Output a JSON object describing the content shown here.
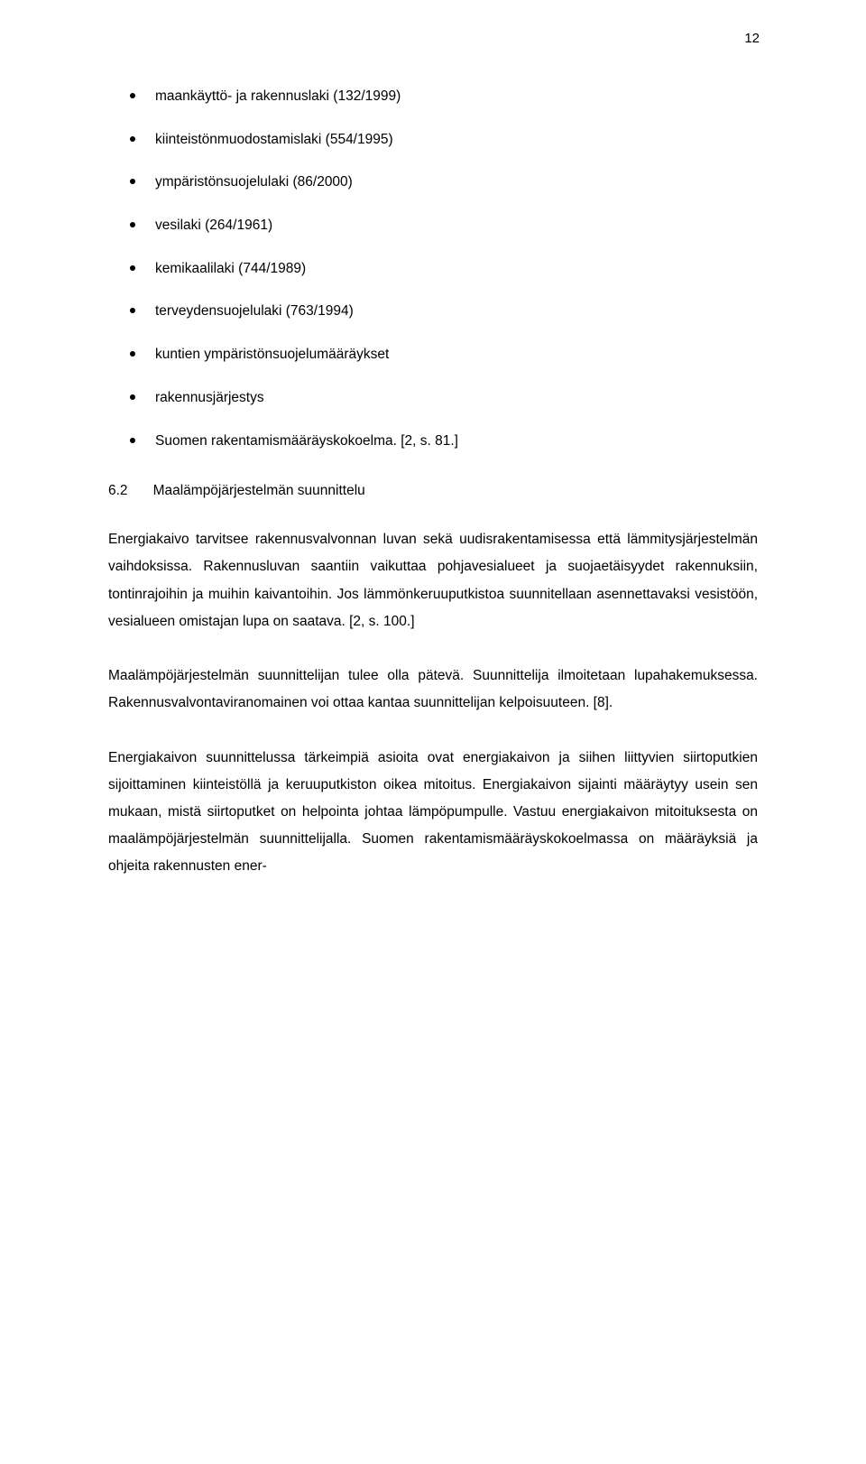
{
  "page_number": "12",
  "bullets": [
    "maankäyttö- ja rakennuslaki (132/1999)",
    "kiinteistönmuodostamislaki (554/1995)",
    "ympäristönsuojelulaki (86/2000)",
    "vesilaki (264/1961)",
    "kemikaalilaki (744/1989)",
    "terveydensuojelulaki (763/1994)",
    "kuntien ympäristönsuojelumääräykset",
    "rakennusjärjestys",
    "Suomen rakentamismääräyskokoelma. [2, s. 81.]"
  ],
  "section": {
    "number": "6.2",
    "title": "Maalämpöjärjestelmän suunnittelu"
  },
  "paragraphs": [
    "Energiakaivo tarvitsee rakennusvalvonnan luvan sekä uudisrakentamisessa että lämmitysjärjestelmän vaihdoksissa. Rakennusluvan saantiin vaikuttaa pohjavesialueet ja suojaetäisyydet rakennuksiin, tontinrajoihin ja muihin kaivantoihin. Jos lämmönkeruuputkistoa suunnitellaan asennettavaksi vesistöön, vesialueen omistajan lupa on saatava. [2, s. 100.]",
    "Maalämpöjärjestelmän suunnittelijan tulee olla pätevä. Suunnittelija ilmoitetaan lupahakemuksessa. Rakennusvalvontaviranomainen voi ottaa kantaa suunnittelijan kelpoisuuteen. [8].",
    "Energiakaivon suunnittelussa tärkeimpiä asioita ovat energiakaivon ja siihen liittyvien siirtoputkien sijoittaminen kiinteistöllä ja keruuputkiston oikea mitoitus. Energiakaivon sijainti määräytyy usein sen mukaan, mistä siirtoputket on helpointa johtaa lämpöpumpulle. Vastuu energiakaivon mitoituksesta on maalämpöjärjestelmän suunnittelijalla. Suomen rakentamismääräyskokoelmassa on määräyksiä ja ohjeita rakennusten ener-"
  ]
}
